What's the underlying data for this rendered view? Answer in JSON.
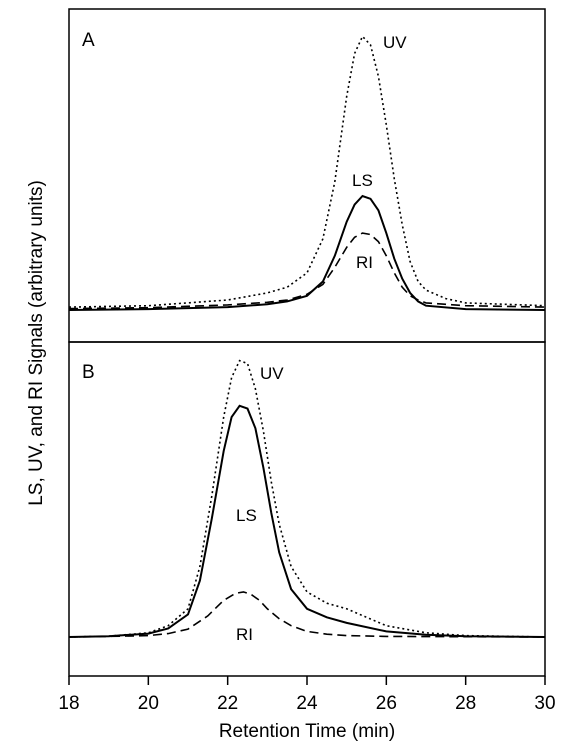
{
  "chart_data": [
    {
      "panel": "A",
      "type": "line",
      "xlim": [
        18,
        30
      ],
      "ylim": [
        0,
        1.0
      ],
      "grid": false,
      "series": [
        {
          "name": "UV",
          "style": "dotted",
          "points": [
            [
              18,
              0.01
            ],
            [
              20,
              0.015
            ],
            [
              22,
              0.035
            ],
            [
              23,
              0.06
            ],
            [
              23.5,
              0.08
            ],
            [
              24,
              0.13
            ],
            [
              24.4,
              0.25
            ],
            [
              24.7,
              0.45
            ],
            [
              25,
              0.75
            ],
            [
              25.2,
              0.9
            ],
            [
              25.4,
              0.96
            ],
            [
              25.6,
              0.93
            ],
            [
              25.8,
              0.82
            ],
            [
              26,
              0.65
            ],
            [
              26.2,
              0.46
            ],
            [
              26.4,
              0.3
            ],
            [
              26.6,
              0.17
            ],
            [
              26.8,
              0.1
            ],
            [
              27,
              0.07
            ],
            [
              27.5,
              0.04
            ],
            [
              28,
              0.025
            ],
            [
              30,
              0.015
            ]
          ]
        },
        {
          "name": "LS",
          "style": "solid",
          "points": [
            [
              18,
              0.0
            ],
            [
              20,
              0.003
            ],
            [
              22,
              0.01
            ],
            [
              23,
              0.02
            ],
            [
              23.5,
              0.03
            ],
            [
              24,
              0.05
            ],
            [
              24.4,
              0.1
            ],
            [
              24.7,
              0.19
            ],
            [
              25,
              0.31
            ],
            [
              25.2,
              0.37
            ],
            [
              25.4,
              0.4
            ],
            [
              25.6,
              0.39
            ],
            [
              25.8,
              0.35
            ],
            [
              26,
              0.27
            ],
            [
              26.2,
              0.18
            ],
            [
              26.4,
              0.11
            ],
            [
              26.6,
              0.06
            ],
            [
              26.8,
              0.03
            ],
            [
              27,
              0.015
            ],
            [
              28,
              0.003
            ],
            [
              30,
              0.0
            ]
          ]
        },
        {
          "name": "RI",
          "style": "dashed",
          "points": [
            [
              18,
              0.005
            ],
            [
              20,
              0.008
            ],
            [
              22,
              0.018
            ],
            [
              23,
              0.027
            ],
            [
              23.5,
              0.035
            ],
            [
              24,
              0.055
            ],
            [
              24.4,
              0.09
            ],
            [
              24.7,
              0.15
            ],
            [
              25,
              0.22
            ],
            [
              25.2,
              0.255
            ],
            [
              25.4,
              0.27
            ],
            [
              25.6,
              0.265
            ],
            [
              25.8,
              0.24
            ],
            [
              26,
              0.19
            ],
            [
              26.2,
              0.13
            ],
            [
              26.4,
              0.08
            ],
            [
              26.6,
              0.05
            ],
            [
              26.8,
              0.035
            ],
            [
              27,
              0.025
            ],
            [
              28,
              0.015
            ],
            [
              30,
              0.01
            ]
          ]
        }
      ]
    },
    {
      "panel": "B",
      "type": "line",
      "xlim": [
        18,
        30
      ],
      "ylim": [
        0,
        1.0
      ],
      "grid": false,
      "series": [
        {
          "name": "UV",
          "style": "dotted",
          "points": [
            [
              18,
              0.0
            ],
            [
              19,
              0.003
            ],
            [
              20,
              0.015
            ],
            [
              20.5,
              0.04
            ],
            [
              21,
              0.1
            ],
            [
              21.3,
              0.25
            ],
            [
              21.6,
              0.5
            ],
            [
              21.9,
              0.78
            ],
            [
              22.1,
              0.92
            ],
            [
              22.3,
              0.98
            ],
            [
              22.5,
              0.97
            ],
            [
              22.7,
              0.88
            ],
            [
              22.9,
              0.73
            ],
            [
              23.1,
              0.55
            ],
            [
              23.3,
              0.4
            ],
            [
              23.6,
              0.25
            ],
            [
              24,
              0.16
            ],
            [
              24.5,
              0.12
            ],
            [
              25,
              0.1
            ],
            [
              25.5,
              0.07
            ],
            [
              26,
              0.04
            ],
            [
              27,
              0.015
            ],
            [
              28,
              0.005
            ],
            [
              30,
              0.0
            ]
          ]
        },
        {
          "name": "LS",
          "style": "solid",
          "points": [
            [
              18,
              0.0
            ],
            [
              19,
              0.003
            ],
            [
              20,
              0.012
            ],
            [
              20.5,
              0.03
            ],
            [
              21,
              0.08
            ],
            [
              21.3,
              0.2
            ],
            [
              21.6,
              0.42
            ],
            [
              21.9,
              0.66
            ],
            [
              22.1,
              0.78
            ],
            [
              22.3,
              0.82
            ],
            [
              22.5,
              0.81
            ],
            [
              22.7,
              0.74
            ],
            [
              22.9,
              0.6
            ],
            [
              23.1,
              0.44
            ],
            [
              23.3,
              0.3
            ],
            [
              23.6,
              0.17
            ],
            [
              24,
              0.1
            ],
            [
              24.5,
              0.07
            ],
            [
              25,
              0.05
            ],
            [
              26,
              0.02
            ],
            [
              27,
              0.008
            ],
            [
              28,
              0.003
            ],
            [
              30,
              0.0
            ]
          ]
        },
        {
          "name": "RI",
          "style": "dashed",
          "points": [
            [
              18,
              0.0
            ],
            [
              19,
              0.002
            ],
            [
              20,
              0.005
            ],
            [
              20.5,
              0.012
            ],
            [
              21,
              0.028
            ],
            [
              21.5,
              0.075
            ],
            [
              21.9,
              0.13
            ],
            [
              22.2,
              0.155
            ],
            [
              22.4,
              0.16
            ],
            [
              22.6,
              0.15
            ],
            [
              22.8,
              0.13
            ],
            [
              23,
              0.1
            ],
            [
              23.3,
              0.065
            ],
            [
              23.6,
              0.04
            ],
            [
              24,
              0.02
            ],
            [
              24.5,
              0.01
            ],
            [
              25,
              0.005
            ],
            [
              26,
              0.002
            ],
            [
              30,
              0.0
            ]
          ]
        }
      ]
    }
  ],
  "panel_labels": [
    "A",
    "B"
  ],
  "curve_labels_a": [
    "UV",
    "LS",
    "RI"
  ],
  "curve_labels_b": [
    "UV",
    "LS",
    "RI"
  ],
  "x_ticks": [
    "18",
    "20",
    "22",
    "24",
    "26",
    "28",
    "30"
  ],
  "xlabel": "Retention Time (min)",
  "ylabel": "LS, UV, and RI Signals (arbitrary units)"
}
